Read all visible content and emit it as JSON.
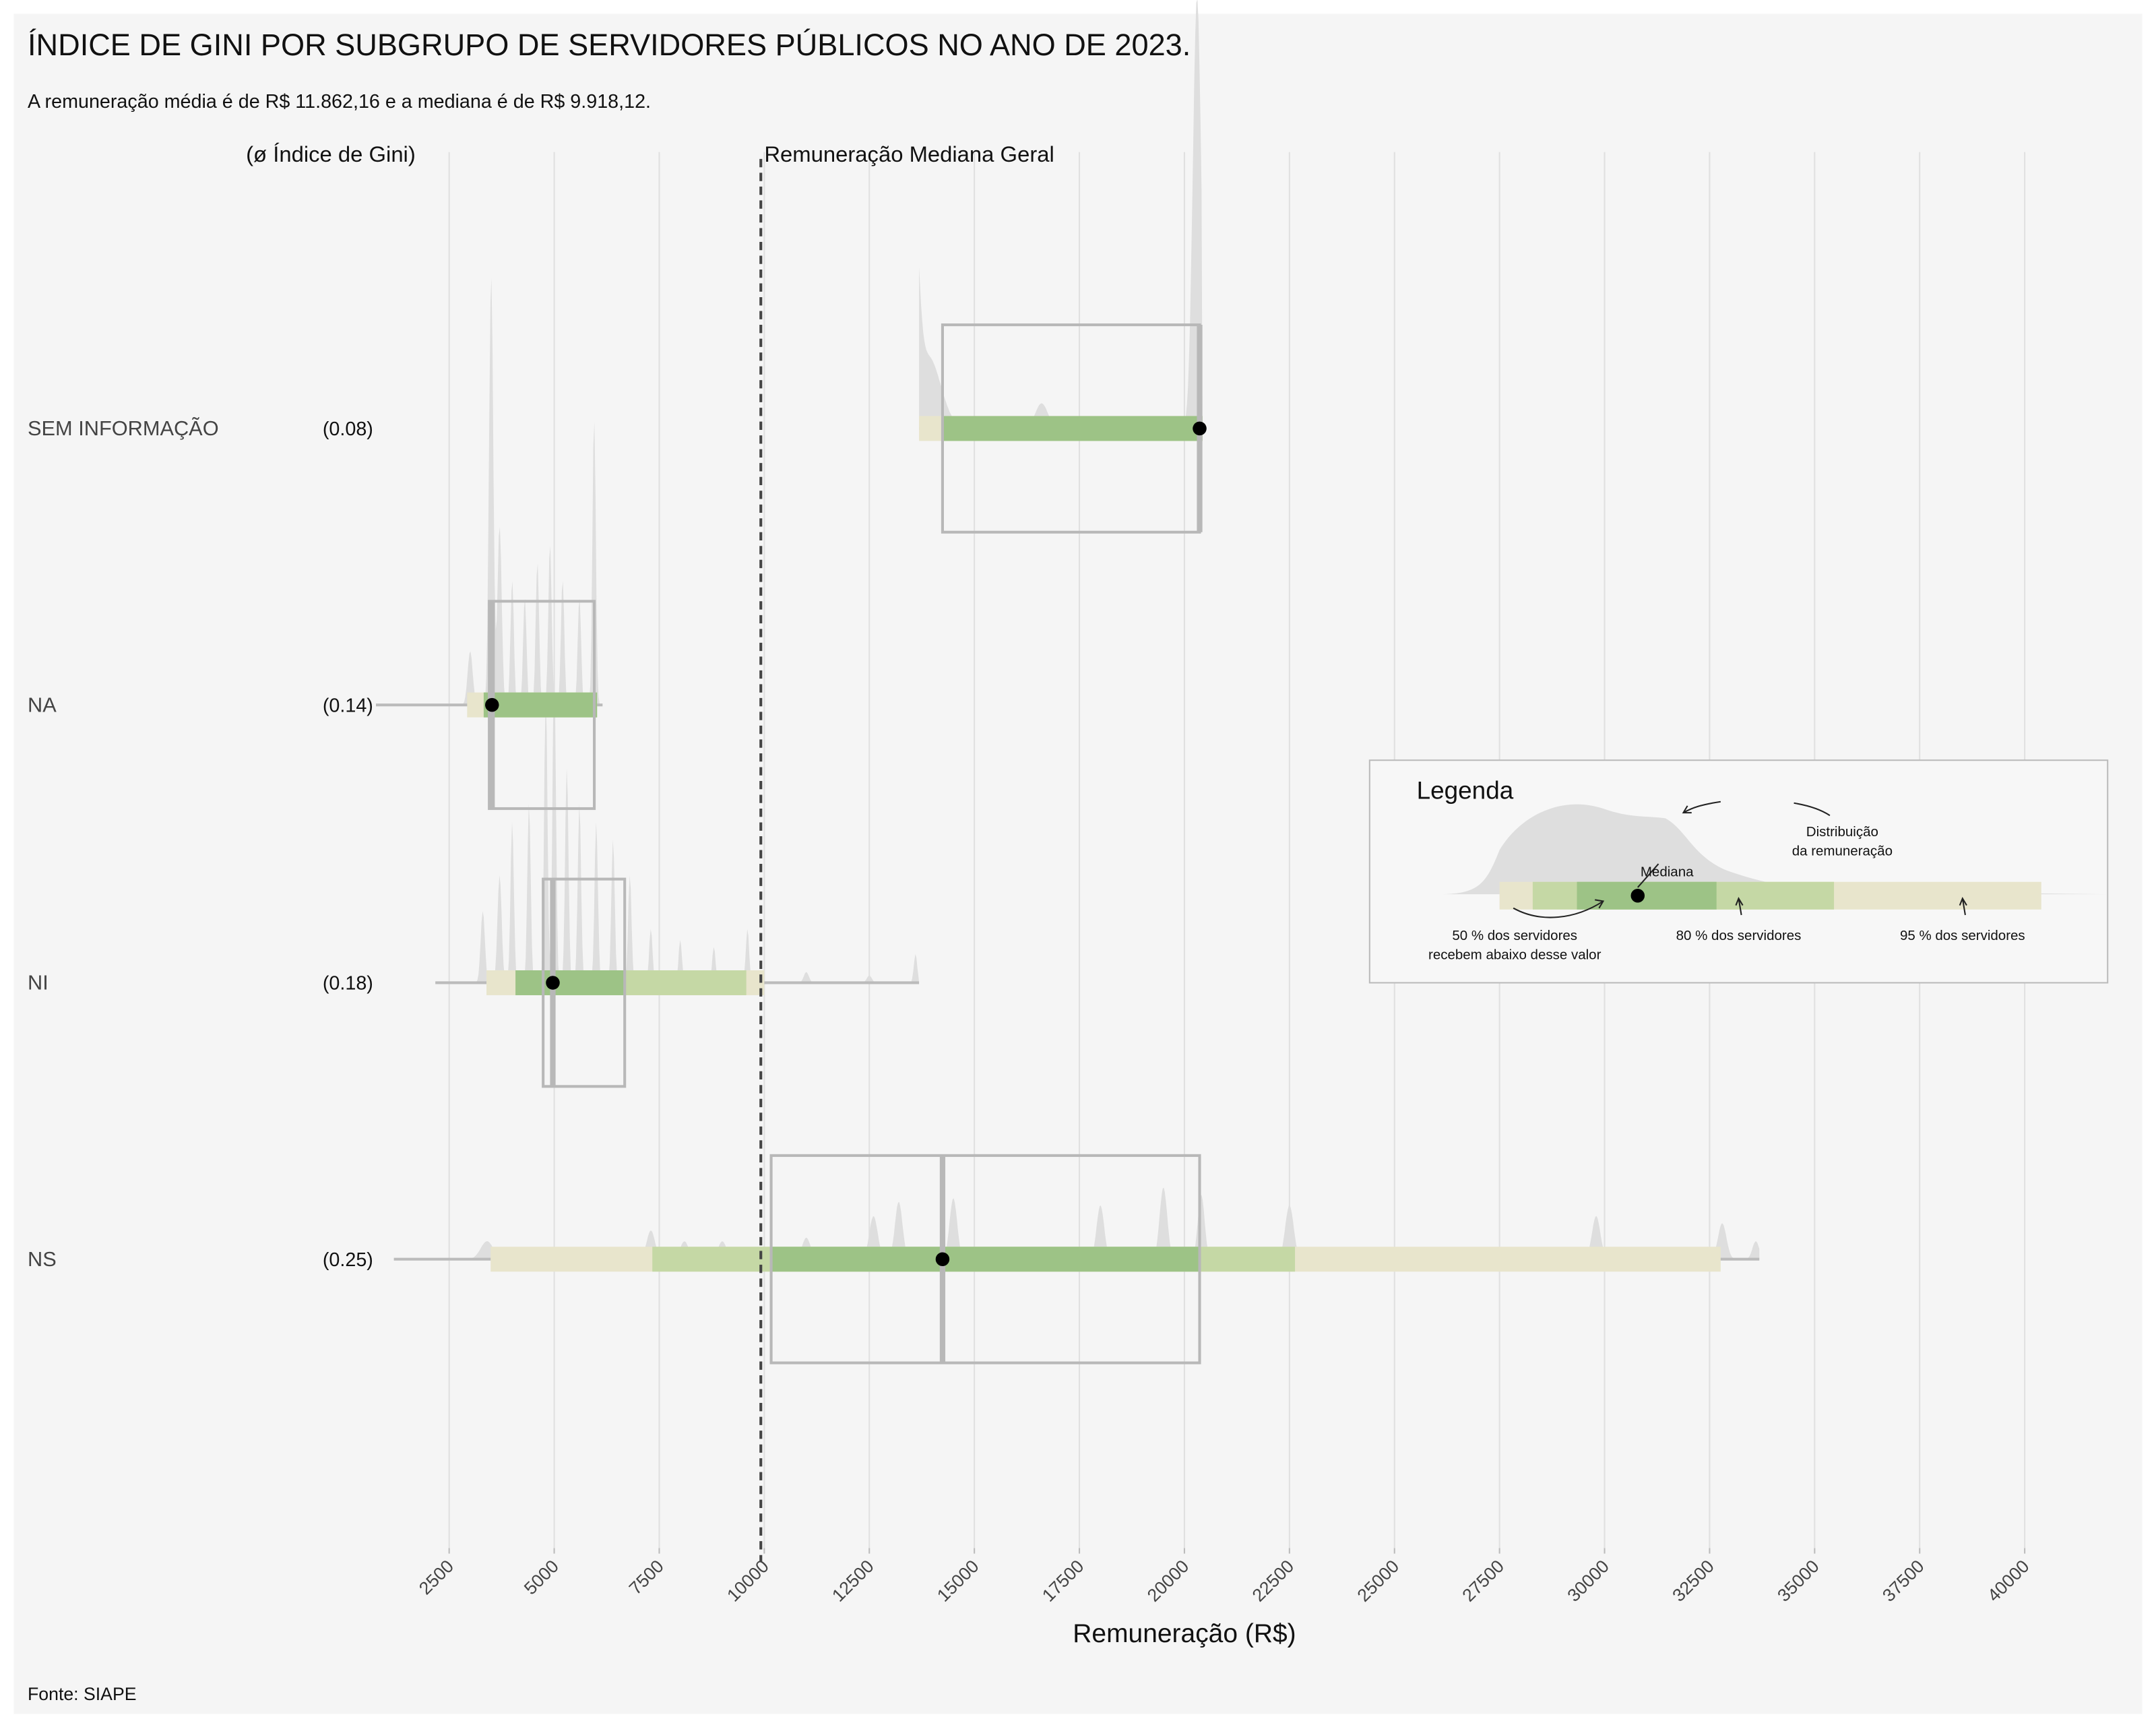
{
  "header": {
    "title": "ÍNDICE DE GINI POR SUBGRUPO DE SERVIDORES PÚBLICOS NO ANO DE 2023.",
    "subtitle": "A remuneração média é de R$ 11.862,16 e a mediana é de R$ 9.918,12.",
    "gini_header": "(ø Índice de Gini)",
    "median_label": "Remuneração Mediana Geral"
  },
  "footer": {
    "source": "Fonte: SIAPE"
  },
  "chart_data": {
    "type": "box",
    "title": "ÍNDICE DE GINI POR SUBGRUPO DE SERVIDORES PÚBLICOS NO ANO DE 2023.",
    "xlabel": "Remuneração (R$)",
    "ylabel": "",
    "xlim": [
      0,
      42000
    ],
    "xticks": [
      2500,
      5000,
      7500,
      10000,
      12500,
      15000,
      17500,
      20000,
      22500,
      25000,
      27500,
      30000,
      32500,
      35000,
      37500,
      40000
    ],
    "grid": true,
    "overall_median": 9918.12,
    "colors": {
      "p95": "#e8e5cc",
      "p80": "#c5d8a5",
      "p50": "#9dc386",
      "density": "#dedede",
      "box": "#b8b8b8",
      "median_line": "#444444"
    },
    "groups": [
      {
        "name": "SEM INFORMAÇÃO",
        "gini": "(0.08)",
        "min": 13684,
        "max": 20430,
        "p95": [
          13684,
          20430
        ],
        "p80": [
          14243,
          20430
        ],
        "p50": [
          14243,
          20430
        ],
        "q1": 14243,
        "q3": 20362,
        "median": 20362,
        "density_peaks": [
          [
            13550,
            0.55,
            120
          ],
          [
            13900,
            0.2,
            300
          ],
          [
            16600,
            0.07,
            150
          ],
          [
            20300,
            1.2,
            100
          ]
        ]
      },
      {
        "name": "NA",
        "gini": "(0.14)",
        "min": 757,
        "max": 6151,
        "p95": [
          2928,
          6020
        ],
        "p80": [
          3322,
          6020
        ],
        "p50": [
          3322,
          6020
        ],
        "q1": 3454,
        "q3": 5954,
        "median": 3520,
        "density_peaks": [
          [
            3000,
            0.15,
            60
          ],
          [
            3500,
            1.2,
            50
          ],
          [
            3700,
            0.5,
            50
          ],
          [
            4000,
            0.35,
            40
          ],
          [
            4300,
            0.3,
            40
          ],
          [
            4600,
            0.4,
            40
          ],
          [
            4900,
            0.45,
            40
          ],
          [
            5200,
            0.35,
            40
          ],
          [
            5600,
            0.3,
            40
          ],
          [
            5950,
            0.8,
            40
          ]
        ]
      },
      {
        "name": "NI",
        "gini": "(0.18)",
        "min": 2171,
        "max": 13684,
        "p95": [
          3388,
          10000
        ],
        "p80": [
          4079,
          9572
        ],
        "p50": [
          4079,
          6678
        ],
        "q1": 4737,
        "q3": 6678,
        "median": 4967,
        "density_peaks": [
          [
            3300,
            0.2,
            50
          ],
          [
            3700,
            0.3,
            50
          ],
          [
            4000,
            0.45,
            40
          ],
          [
            4400,
            0.5,
            40
          ],
          [
            4800,
            0.8,
            40
          ],
          [
            5000,
            0.9,
            40
          ],
          [
            5300,
            0.6,
            40
          ],
          [
            5600,
            0.5,
            40
          ],
          [
            6000,
            0.45,
            40
          ],
          [
            6400,
            0.4,
            40
          ],
          [
            6800,
            0.3,
            40
          ],
          [
            7300,
            0.15,
            40
          ],
          [
            8000,
            0.12,
            40
          ],
          [
            8800,
            0.1,
            40
          ],
          [
            9600,
            0.15,
            40
          ],
          [
            11000,
            0.03,
            60
          ],
          [
            12500,
            0.02,
            60
          ],
          [
            13600,
            0.08,
            40
          ]
        ]
      },
      {
        "name": "NS",
        "gini": "(0.25)",
        "min": 1184,
        "max": 33684,
        "p95": [
          3487,
          32763
        ],
        "p80": [
          7336,
          22632
        ],
        "p50": [
          10164,
          20362
        ],
        "q1": 10164,
        "q3": 20362,
        "median": 14243,
        "density_peaks": [
          [
            3400,
            0.05,
            150
          ],
          [
            7300,
            0.08,
            100
          ],
          [
            8100,
            0.05,
            100
          ],
          [
            9000,
            0.05,
            100
          ],
          [
            11000,
            0.06,
            100
          ],
          [
            12600,
            0.12,
            100
          ],
          [
            13200,
            0.16,
            90
          ],
          [
            14500,
            0.17,
            90
          ],
          [
            18000,
            0.15,
            90
          ],
          [
            19500,
            0.2,
            90
          ],
          [
            20400,
            0.18,
            80
          ],
          [
            22500,
            0.15,
            100
          ],
          [
            29800,
            0.12,
            100
          ],
          [
            32800,
            0.1,
            100
          ],
          [
            33600,
            0.05,
            80
          ]
        ]
      }
    ]
  },
  "legend": {
    "title": "Legenda",
    "distribution": [
      "Distribuição",
      "da remuneração"
    ],
    "median": "Mediana",
    "p50": [
      "50 % dos servidores",
      "recebem abaixo desse valor"
    ],
    "p80": "80 % dos servidores",
    "p95": "95 % dos servidores"
  }
}
